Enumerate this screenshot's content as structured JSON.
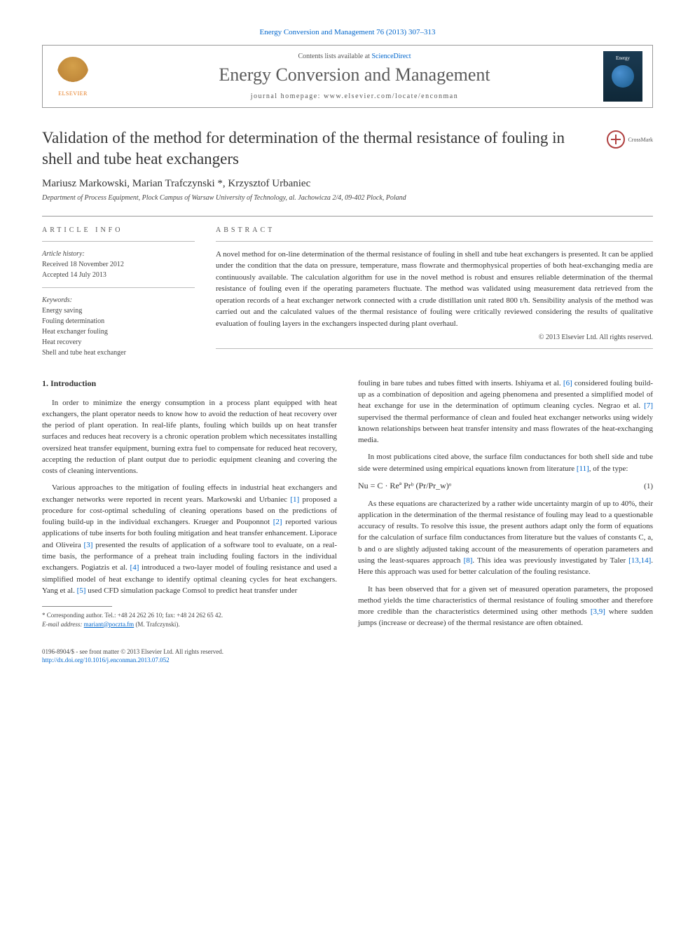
{
  "header": {
    "journal_ref": "Energy Conversion and Management 76 (2013) 307–313",
    "contents_prefix": "Contents lists available at ",
    "contents_link": "ScienceDirect",
    "journal_name": "Energy Conversion and Management",
    "homepage_prefix": "journal homepage: ",
    "homepage_url": "www.elsevier.com/locate/enconman",
    "elsevier_label": "ELSEVIER",
    "cover_title": "Energy"
  },
  "crossmark_label": "CrossMark",
  "title": "Validation of the method for determination of the thermal resistance of fouling in shell and tube heat exchangers",
  "authors": "Mariusz Markowski, Marian Trafczynski *, Krzysztof Urbaniec",
  "affiliation": "Department of Process Equipment, Plock Campus of Warsaw University of Technology, al. Jachowicza 2/4, 09-402 Plock, Poland",
  "info": {
    "head": "ARTICLE INFO",
    "history_label": "Article history:",
    "received": "Received 18 November 2012",
    "accepted": "Accepted 14 July 2013",
    "keywords_label": "Keywords:",
    "keywords": [
      "Energy saving",
      "Fouling determination",
      "Heat exchanger fouling",
      "Heat recovery",
      "Shell and tube heat exchanger"
    ]
  },
  "abstract": {
    "head": "ABSTRACT",
    "text": "A novel method for on-line determination of the thermal resistance of fouling in shell and tube heat exchangers is presented. It can be applied under the condition that the data on pressure, temperature, mass flowrate and thermophysical properties of both heat-exchanging media are continuously available. The calculation algorithm for use in the novel method is robust and ensures reliable determination of the thermal resistance of fouling even if the operating parameters fluctuate. The method was validated using measurement data retrieved from the operation records of a heat exchanger network connected with a crude distillation unit rated 800 t/h. Sensibility analysis of the method was carried out and the calculated values of the thermal resistance of fouling were critically reviewed considering the results of qualitative evaluation of fouling layers in the exchangers inspected during plant overhaul.",
    "copyright": "© 2013 Elsevier Ltd. All rights reserved."
  },
  "intro_head": "1. Introduction",
  "col1": {
    "p1": "In order to minimize the energy consumption in a process plant equipped with heat exchangers, the plant operator needs to know how to avoid the reduction of heat recovery over the period of plant operation. In real-life plants, fouling which builds up on heat transfer surfaces and reduces heat recovery is a chronic operation problem which necessitates installing oversized heat transfer equipment, burning extra fuel to compensate for reduced heat recovery, accepting the reduction of plant output due to periodic equipment cleaning and covering the costs of cleaning interventions.",
    "p2a": "Various approaches to the mitigation of fouling effects in industrial heat exchangers and exchanger networks were reported in recent years. Markowski and Urbaniec ",
    "r1": "[1]",
    "p2b": " proposed a procedure for cost-optimal scheduling of cleaning operations based on the predictions of fouling build-up in the individual exchangers. Krueger and Pouponnot ",
    "r2": "[2]",
    "p2c": " reported various applications of tube inserts for both fouling mitigation and heat transfer enhancement. Liporace and Oliveira ",
    "r3": "[3]",
    "p2d": " presented the results of application of a software tool to evaluate, on a real-time basis, the performance of a preheat train including fouling factors in the individual exchangers. Pogiatzis et al. ",
    "r4": "[4]",
    "p2e": " introduced a two-layer model of fouling resistance and used a simplified model of heat exchange to identify optimal cleaning cycles for heat exchangers. Yang et al. ",
    "r5": "[5]",
    "p2f": " used CFD simulation package Comsol to predict heat transfer under"
  },
  "col2": {
    "p1a": "fouling in bare tubes and tubes fitted with inserts. Ishiyama et al. ",
    "r6": "[6]",
    "p1b": " considered fouling build-up as a combination of deposition and ageing phenomena and presented a simplified model of heat exchange for use in the determination of optimum cleaning cycles. Negrao et al. ",
    "r7": "[7]",
    "p1c": " supervised the thermal performance of clean and fouled heat exchanger networks using widely known relationships between heat transfer intensity and mass flowrates of the heat-exchanging media.",
    "p2a": "In most publications cited above, the surface film conductances for both shell side and tube side were determined using empirical equations known from literature ",
    "r11": "[11]",
    "p2b": ", of the type:",
    "equation": "Nu = C · Reª Prᵇ (Pr/Pr_w)ᵒ",
    "eqnum": "(1)",
    "p3a": "As these equations are characterized by a rather wide uncertainty margin of up to 40%, their application in the determination of the thermal resistance of fouling may lead to a questionable accuracy of results. To resolve this issue, the present authors adapt only the form of equations for the calculation of surface film conductances from literature but the values of constants C, a, b and o are slightly adjusted taking account of the measurements of operation parameters and using the least-squares approach ",
    "r8": "[8]",
    "p3b": ". This idea was previously investigated by Taler ",
    "r1314": "[13,14]",
    "p3c": ". Here this approach was used for better calculation of the fouling resistance.",
    "p4a": "It has been observed that for a given set of measured operation parameters, the proposed method yields the time characteristics of thermal resistance of fouling smoother and therefore more credible than the characteristics determined using other methods ",
    "r39": "[3,9]",
    "p4b": " where sudden jumps (increase or decrease) of the thermal resistance are often obtained."
  },
  "footnote": {
    "corr": "* Corresponding author. Tel.: +48 24 262 26 10; fax: +48 24 262 65 42.",
    "email_label": "E-mail address: ",
    "email": "mariant@poczta.fm",
    "email_suffix": " (M. Trafczynski)."
  },
  "bottom": {
    "line1": "0196-8904/$ - see front matter © 2013 Elsevier Ltd. All rights reserved.",
    "doi": "http://dx.doi.org/10.1016/j.enconman.2013.07.052"
  }
}
